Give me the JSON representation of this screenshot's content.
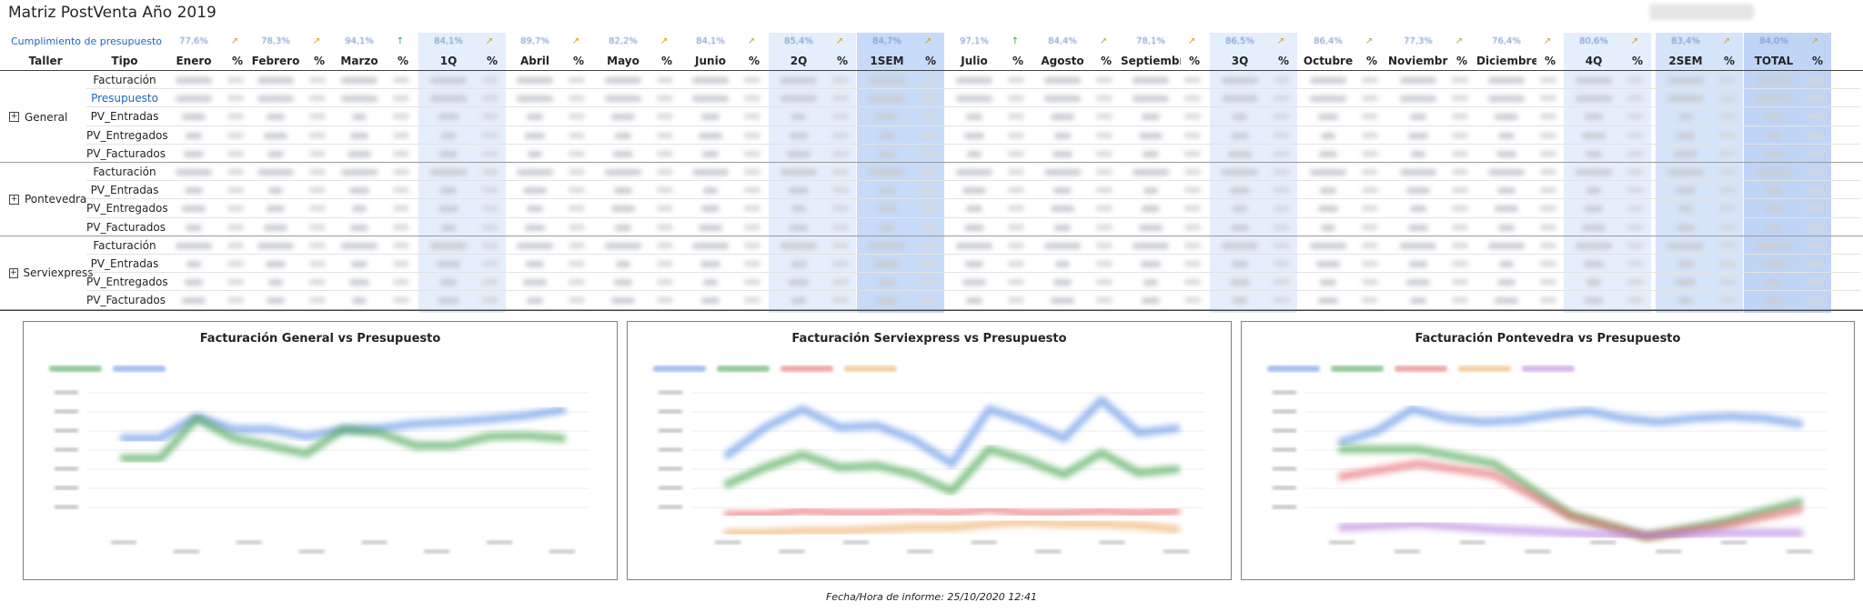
{
  "title": "Matriz PostVenta Año 2019",
  "budget_label": "Cumplimiento de presupuesto",
  "columns": [
    "Enero",
    "Febrero",
    "Marzo",
    "1Q",
    "Abril",
    "Mayo",
    "Junio",
    "2Q",
    "1SEM",
    "Julio",
    "Agosto",
    "Septiembre",
    "3Q",
    "Octubre",
    "Noviembre",
    "Diciembre",
    "4Q",
    "2SEM",
    "TOTAL"
  ],
  "budget": [
    "77,6%",
    "78,3%",
    "94,1%",
    "84,1%",
    "89,7%",
    "82,2%",
    "84,1%",
    "85,4%",
    "84,7%",
    "97,1%",
    "84,4%",
    "78,1%",
    "86,5%",
    "86,4%",
    "77,3%",
    "76,4%",
    "80,6%",
    "83,4%",
    "84,0%"
  ],
  "budget_arrows": [
    "↗",
    "↗",
    "↑",
    "↗",
    "↗",
    "↗",
    "↗",
    "↗",
    "↗",
    "↑",
    "↗",
    "↗",
    "↗",
    "↗",
    "↗",
    "↗",
    "↗",
    "↗",
    "↗"
  ],
  "header": {
    "taller": "Taller",
    "tipo": "Tipo",
    "pct": "%"
  },
  "groups": [
    {
      "name": "General",
      "rows": [
        "Facturación",
        "Presupuesto",
        "PV_Entradas",
        "PV_Entregados",
        "PV_Facturados"
      ]
    },
    {
      "name": "Pontevedra",
      "rows": [
        "Facturación",
        "PV_Entradas",
        "PV_Entregados",
        "PV_Facturados"
      ]
    },
    {
      "name": "Serviexpress",
      "rows": [
        "Facturación",
        "PV_Entradas",
        "PV_Entregados",
        "PV_Facturados"
      ]
    }
  ],
  "charts": [
    {
      "title": "Facturación General vs Presupuesto"
    },
    {
      "title": "Facturación Serviexpress vs Presupuesto"
    },
    {
      "title": "Facturación Pontevedra vs Presupuesto"
    }
  ],
  "colors": {
    "blue": "#5b8ee8",
    "green": "#3fa24a",
    "red": "#e8636b",
    "orange": "#f0a860",
    "purple": "#b67de0",
    "highlight": "#c7dbf7",
    "link": "#1f66c3"
  },
  "footer": "Fecha/Hora de informe: 25/10/2020 12:41"
}
